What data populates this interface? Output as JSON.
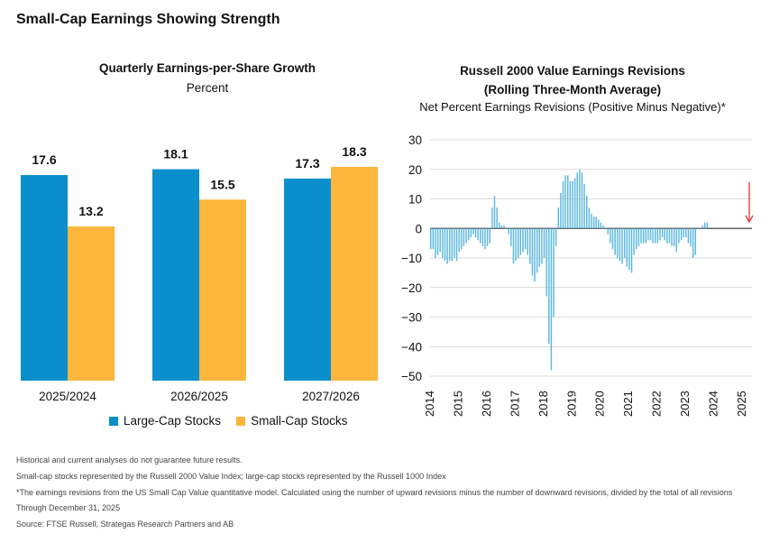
{
  "title": "Small-Cap Earnings Showing Strength",
  "colors": {
    "large_cap": "#0a8fcc",
    "small_cap": "#fdb53c",
    "revisions": "#5ab7df",
    "arrow": "#e2322c",
    "axis": "#333333"
  },
  "chart_data": [
    {
      "type": "bar",
      "title": "Quarterly Earnings-per-Share Growth",
      "subtitle": "Percent",
      "categories": [
        "2025/2024",
        "2026/2025",
        "2027/2026"
      ],
      "series": [
        {
          "name": "Large-Cap Stocks",
          "values": [
            17.6,
            18.1,
            17.3
          ],
          "labels": [
            "17.6",
            "18.1",
            "17.3"
          ]
        },
        {
          "name": "Small-Cap Stocks",
          "values": [
            13.2,
            15.5,
            18.3
          ],
          "labels": [
            "13.2",
            "15.5",
            "18.3"
          ]
        }
      ],
      "ylim": [
        0,
        20
      ],
      "legend": "bottom"
    },
    {
      "type": "bar",
      "title_lines": [
        "Russell 2000 Value Earnings Revisions",
        "(Rolling Three-Month Average)"
      ],
      "subtitle": "Net Percent Earnings Revisions (Positive Minus Negative)*",
      "x_range": [
        2014,
        2025.35
      ],
      "x_ticks": [
        "2014",
        "2015",
        "2016",
        "2017",
        "2018",
        "2019",
        "2020",
        "2021",
        "2022",
        "2023",
        "2024",
        "2025"
      ],
      "ylim": [
        -50,
        30
      ],
      "y_ticks": [
        "30",
        "20",
        "10",
        "0",
        "−10",
        "−20",
        "−30",
        "−40",
        "−50"
      ],
      "grid": true,
      "monthly_start": "2014-01",
      "values": [
        -7,
        -7,
        -10,
        -9,
        -8,
        -10,
        -11,
        -12,
        -11,
        -11,
        -10,
        -11,
        -8,
        -7,
        -6,
        -5,
        -4,
        -3,
        -2,
        -3,
        -4,
        -5,
        -6,
        -7,
        -6,
        -5,
        7,
        11,
        7,
        2,
        1,
        1,
        0,
        -2,
        -6,
        -12,
        -11,
        -10,
        -9,
        -8,
        -7,
        -9,
        -12,
        -16,
        -18,
        -15,
        -13,
        -12,
        -10,
        -23,
        -39,
        -48,
        -30,
        -6,
        7,
        12,
        16,
        18,
        18,
        16,
        16,
        17,
        19,
        20,
        19,
        15,
        11,
        7,
        5,
        4,
        4,
        3,
        2,
        1,
        0,
        -2,
        -5,
        -7,
        -9,
        -10,
        -11,
        -12,
        -10,
        -13,
        -14,
        -15,
        -9,
        -7,
        -6,
        -5,
        -5,
        -5,
        -4,
        -4,
        -5,
        -5,
        -5,
        -4,
        -3,
        -4,
        -5,
        -5,
        -6,
        -6,
        -8,
        -5,
        -4,
        -3,
        -3,
        -5,
        -6,
        -10,
        -9,
        0,
        0,
        1,
        2,
        2
      ],
      "annotation": "red arrow pointing to latest value"
    }
  ],
  "footnotes": [
    "Historical and current analyses do not guarantee future results.",
    "Small-cap stocks represented by the Russell 2000 Value Index; large-cap stocks represented by the Russell 1000 Index",
    "*The earnings revisions from the US Small Cap Value quantitative model. Calculated using the number of upward revisions minus the number of downward revisions, divided by the total of all revisions",
    "Through December 31, 2025",
    "Source: FTSE Russell, Strategas Research Partners and AB"
  ]
}
